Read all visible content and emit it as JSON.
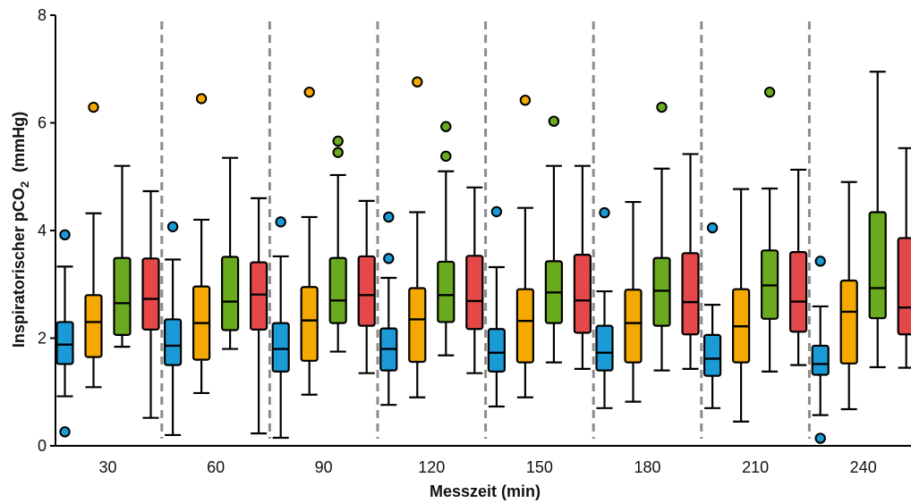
{
  "chart_data": {
    "type": "box",
    "title": "",
    "xlabel": "Messzeit (min)",
    "ylabel": {
      "main": "Inspiratorischer pCO",
      "sub": "2",
      "unit": "(mmHg)"
    },
    "ylim": [
      0,
      8
    ],
    "yticks": [
      0,
      2,
      4,
      6,
      8
    ],
    "categories": [
      "30",
      "60",
      "90",
      "120",
      "150",
      "180",
      "210",
      "240"
    ],
    "group_separators": "dashed",
    "grid": false,
    "series": [
      {
        "color": "#1a9ad6",
        "boxes": [
          {
            "whisker_low": 0.92,
            "q1": 1.52,
            "median": 1.88,
            "q3": 2.3,
            "whisker_high": 3.33,
            "outliers": [
              3.92,
              0.26
            ]
          },
          {
            "whisker_low": 0.2,
            "q1": 1.5,
            "median": 1.86,
            "q3": 2.35,
            "whisker_high": 3.46,
            "outliers": [
              4.07
            ]
          },
          {
            "whisker_low": 0.15,
            "q1": 1.38,
            "median": 1.8,
            "q3": 2.28,
            "whisker_high": 3.52,
            "outliers": [
              4.16
            ]
          },
          {
            "whisker_low": 0.76,
            "q1": 1.4,
            "median": 1.8,
            "q3": 2.18,
            "whisker_high": 3.12,
            "outliers": [
              4.25,
              3.48
            ]
          },
          {
            "whisker_low": 0.73,
            "q1": 1.38,
            "median": 1.73,
            "q3": 2.17,
            "whisker_high": 3.32,
            "outliers": [
              4.35
            ]
          },
          {
            "whisker_low": 0.7,
            "q1": 1.4,
            "median": 1.73,
            "q3": 2.23,
            "whisker_high": 2.87,
            "outliers": [
              4.33
            ]
          },
          {
            "whisker_low": 0.7,
            "q1": 1.3,
            "median": 1.62,
            "q3": 2.06,
            "whisker_high": 2.62,
            "outliers": [
              4.05
            ]
          },
          {
            "whisker_low": 0.57,
            "q1": 1.32,
            "median": 1.52,
            "q3": 1.86,
            "whisker_high": 2.59,
            "outliers": [
              3.43,
              0.14
            ]
          }
        ]
      },
      {
        "color": "#f5a800",
        "boxes": [
          {
            "whisker_low": 1.09,
            "q1": 1.65,
            "median": 2.3,
            "q3": 2.8,
            "whisker_high": 4.32,
            "outliers": [
              6.29
            ]
          },
          {
            "whisker_low": 0.98,
            "q1": 1.6,
            "median": 2.28,
            "q3": 2.96,
            "whisker_high": 4.2,
            "outliers": [
              6.45
            ]
          },
          {
            "whisker_low": 0.95,
            "q1": 1.58,
            "median": 2.33,
            "q3": 2.95,
            "whisker_high": 4.25,
            "outliers": [
              6.57
            ]
          },
          {
            "whisker_low": 0.9,
            "q1": 1.56,
            "median": 2.35,
            "q3": 2.93,
            "whisker_high": 4.34,
            "outliers": [
              6.76
            ]
          },
          {
            "whisker_low": 0.9,
            "q1": 1.55,
            "median": 2.32,
            "q3": 2.91,
            "whisker_high": 4.42,
            "outliers": [
              6.42
            ]
          },
          {
            "whisker_low": 0.82,
            "q1": 1.55,
            "median": 2.28,
            "q3": 2.9,
            "whisker_high": 4.53,
            "outliers": []
          },
          {
            "whisker_low": 0.45,
            "q1": 1.55,
            "median": 2.22,
            "q3": 2.91,
            "whisker_high": 4.77,
            "outliers": []
          },
          {
            "whisker_low": 0.68,
            "q1": 1.53,
            "median": 2.49,
            "q3": 3.07,
            "whisker_high": 4.9,
            "outliers": []
          }
        ]
      },
      {
        "color": "#6aaa1e",
        "boxes": [
          {
            "whisker_low": 1.84,
            "q1": 2.06,
            "median": 2.65,
            "q3": 3.49,
            "whisker_high": 5.2,
            "outliers": []
          },
          {
            "whisker_low": 1.8,
            "q1": 2.15,
            "median": 2.68,
            "q3": 3.51,
            "whisker_high": 5.35,
            "outliers": []
          },
          {
            "whisker_low": 1.75,
            "q1": 2.28,
            "median": 2.7,
            "q3": 3.49,
            "whisker_high": 5.03,
            "outliers": [
              5.66,
              5.45
            ]
          },
          {
            "whisker_low": 1.68,
            "q1": 2.3,
            "median": 2.8,
            "q3": 3.42,
            "whisker_high": 5.1,
            "outliers": [
              5.93,
              5.38
            ]
          },
          {
            "whisker_low": 1.55,
            "q1": 2.28,
            "median": 2.85,
            "q3": 3.43,
            "whisker_high": 5.2,
            "outliers": [
              6.03
            ]
          },
          {
            "whisker_low": 1.4,
            "q1": 2.23,
            "median": 2.88,
            "q3": 3.49,
            "whisker_high": 5.15,
            "outliers": [
              6.29
            ]
          },
          {
            "whisker_low": 1.38,
            "q1": 2.36,
            "median": 2.98,
            "q3": 3.63,
            "whisker_high": 4.78,
            "outliers": [
              6.57
            ]
          },
          {
            "whisker_low": 1.46,
            "q1": 2.37,
            "median": 2.93,
            "q3": 4.34,
            "whisker_high": 6.95,
            "outliers": []
          }
        ]
      },
      {
        "color": "#e44848",
        "boxes": [
          {
            "whisker_low": 0.52,
            "q1": 2.16,
            "median": 2.73,
            "q3": 3.48,
            "whisker_high": 4.73,
            "outliers": []
          },
          {
            "whisker_low": 0.23,
            "q1": 2.16,
            "median": 2.81,
            "q3": 3.41,
            "whisker_high": 4.6,
            "outliers": []
          },
          {
            "whisker_low": 1.35,
            "q1": 2.23,
            "median": 2.8,
            "q3": 3.52,
            "whisker_high": 4.55,
            "outliers": []
          },
          {
            "whisker_low": 1.35,
            "q1": 2.17,
            "median": 2.69,
            "q3": 3.53,
            "whisker_high": 4.8,
            "outliers": []
          },
          {
            "whisker_low": 1.43,
            "q1": 2.1,
            "median": 2.7,
            "q3": 3.55,
            "whisker_high": 5.2,
            "outliers": []
          },
          {
            "whisker_low": 1.43,
            "q1": 2.07,
            "median": 2.67,
            "q3": 3.58,
            "whisker_high": 5.42,
            "outliers": []
          },
          {
            "whisker_low": 1.5,
            "q1": 2.12,
            "median": 2.68,
            "q3": 3.6,
            "whisker_high": 5.13,
            "outliers": []
          },
          {
            "whisker_low": 1.45,
            "q1": 2.07,
            "median": 2.57,
            "q3": 3.86,
            "whisker_high": 5.53,
            "outliers": []
          }
        ]
      }
    ]
  }
}
